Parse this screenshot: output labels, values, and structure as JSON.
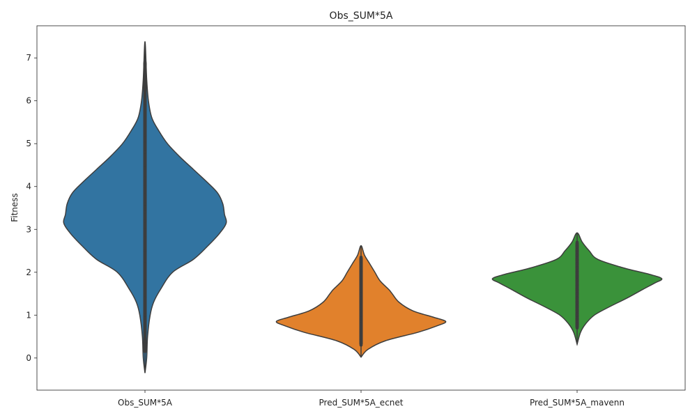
{
  "chart_data": {
    "type": "violin",
    "title": "Obs_SUM*5A",
    "xlabel": "",
    "ylabel": "Fitness",
    "ylim": [
      -0.75,
      7.75
    ],
    "yticks": [
      0,
      1,
      2,
      3,
      4,
      5,
      6,
      7
    ],
    "grid": false,
    "categories": [
      "Obs_SUM*5A",
      "Pred_SUM*5A_ecnet",
      "Pred_SUM*5A_mavenn"
    ],
    "series": [
      {
        "category": "Obs_SUM*5A",
        "color": "#3274a1",
        "min": -0.35,
        "max": 7.38,
        "density": [
          [
            -0.35,
            0.0
          ],
          [
            0.0,
            0.01
          ],
          [
            0.5,
            0.015
          ],
          [
            1.0,
            0.03
          ],
          [
            1.3,
            0.05
          ],
          [
            1.6,
            0.09
          ],
          [
            2.0,
            0.16
          ],
          [
            2.3,
            0.28
          ],
          [
            2.6,
            0.36
          ],
          [
            2.9,
            0.43
          ],
          [
            3.15,
            0.47
          ],
          [
            3.35,
            0.46
          ],
          [
            3.6,
            0.45
          ],
          [
            3.85,
            0.42
          ],
          [
            4.1,
            0.36
          ],
          [
            4.4,
            0.28
          ],
          [
            4.7,
            0.2
          ],
          [
            5.0,
            0.13
          ],
          [
            5.3,
            0.08
          ],
          [
            5.6,
            0.04
          ],
          [
            6.0,
            0.02
          ],
          [
            6.5,
            0.01
          ],
          [
            7.38,
            0.0
          ]
        ],
        "points": [
          0.15,
          0.3,
          0.32,
          1.0,
          1.4,
          1.8,
          2.2,
          2.5,
          2.8,
          3.0,
          3.2,
          3.4,
          3.6,
          3.8,
          4.0,
          4.2,
          4.5,
          4.8,
          5.0,
          5.2,
          5.4,
          5.88,
          6.9
        ]
      },
      {
        "category": "Pred_SUM*5A_ecnet",
        "color": "#e1812c",
        "min": 0.02,
        "max": 2.62,
        "density": [
          [
            0.02,
            0.0
          ],
          [
            0.2,
            0.04
          ],
          [
            0.4,
            0.14
          ],
          [
            0.6,
            0.33
          ],
          [
            0.75,
            0.44
          ],
          [
            0.85,
            0.49
          ],
          [
            0.95,
            0.42
          ],
          [
            1.1,
            0.3
          ],
          [
            1.3,
            0.22
          ],
          [
            1.5,
            0.18
          ],
          [
            1.6,
            0.16
          ],
          [
            1.8,
            0.11
          ],
          [
            2.0,
            0.08
          ],
          [
            2.2,
            0.05
          ],
          [
            2.4,
            0.02
          ],
          [
            2.62,
            0.0
          ]
        ],
        "points": [
          0.3,
          0.4,
          0.5,
          0.6,
          0.7,
          0.8,
          0.9,
          1.0,
          1.1,
          1.2,
          1.3,
          1.4,
          1.5,
          1.6,
          1.7,
          1.8,
          1.9,
          2.0,
          2.1,
          2.2,
          2.3,
          2.35
        ]
      },
      {
        "category": "Pred_SUM*5A_mavenn",
        "color": "#3a923a",
        "min": 0.32,
        "max": 2.92,
        "density": [
          [
            0.32,
            0.0
          ],
          [
            0.6,
            0.02
          ],
          [
            0.8,
            0.05
          ],
          [
            1.0,
            0.1
          ],
          [
            1.2,
            0.19
          ],
          [
            1.4,
            0.29
          ],
          [
            1.6,
            0.38
          ],
          [
            1.75,
            0.45
          ],
          [
            1.85,
            0.49
          ],
          [
            1.95,
            0.42
          ],
          [
            2.1,
            0.27
          ],
          [
            2.3,
            0.12
          ],
          [
            2.5,
            0.07
          ],
          [
            2.7,
            0.03
          ],
          [
            2.92,
            0.0
          ]
        ],
        "points": [
          0.7,
          0.8,
          0.9,
          1.0,
          1.1,
          1.2,
          1.3,
          1.4,
          1.5,
          1.6,
          1.7,
          1.8,
          1.9,
          2.0,
          2.1,
          2.2,
          2.3,
          2.4,
          2.5,
          2.6,
          2.7
        ]
      }
    ]
  }
}
